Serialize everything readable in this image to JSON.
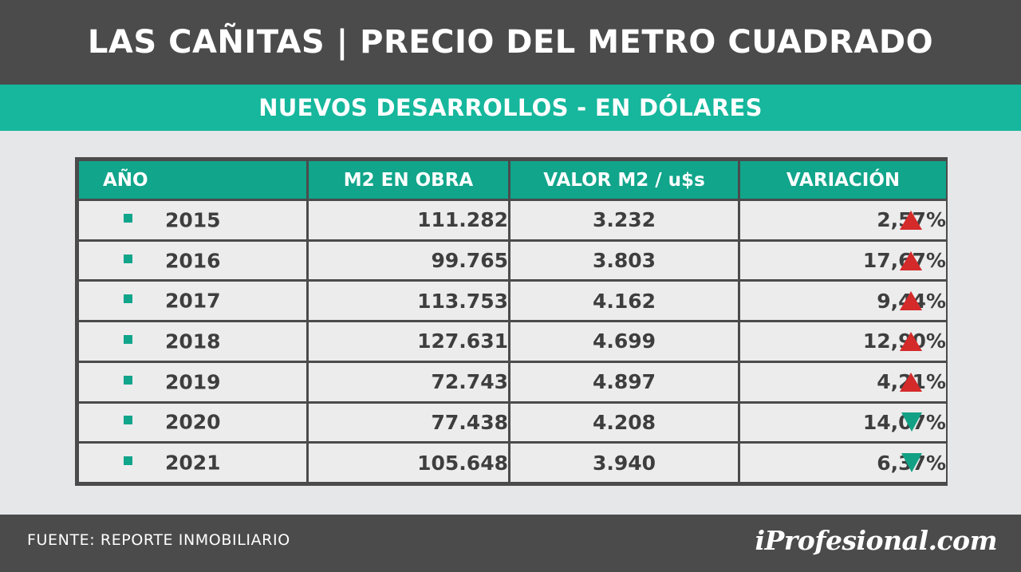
{
  "header": {
    "title": "LAS CAÑITAS | PRECIO DEL METRO CUADRADO",
    "subtitle": "NUEVOS DESARROLLOS - EN DÓLARES"
  },
  "colors": {
    "dark_gray": "#4b4b4c",
    "teal": "#16b79c",
    "teal_header": "#11a58b",
    "up_arrow": "#d42a2a",
    "down_arrow": "#12a184",
    "background": "#e6e7e8"
  },
  "chart_data": {
    "type": "table",
    "title": "LAS CAÑITAS | PRECIO DEL METRO CUADRADO",
    "subtitle": "NUEVOS DESARROLLOS - EN DÓLARES",
    "columns": [
      "AÑO",
      "M2 EN OBRA",
      "VALOR M2 / u$s",
      "VARIACIÓN"
    ],
    "rows": [
      {
        "year": "2015",
        "m2": "111.282",
        "valor": "3.232",
        "variacion": "2,57%",
        "trend": "up"
      },
      {
        "year": "2016",
        "m2": "99.765",
        "valor": "3.803",
        "variacion": "17,67%",
        "trend": "up"
      },
      {
        "year": "2017",
        "m2": "113.753",
        "valor": "4.162",
        "variacion": "9,44%",
        "trend": "up"
      },
      {
        "year": "2018",
        "m2": "127.631",
        "valor": "4.699",
        "variacion": "12,90%",
        "trend": "up"
      },
      {
        "year": "2019",
        "m2": "72.743",
        "valor": "4.897",
        "variacion": "4,21%",
        "trend": "up"
      },
      {
        "year": "2020",
        "m2": "77.438",
        "valor": "4.208",
        "variacion": "14,07%",
        "trend": "down"
      },
      {
        "year": "2021",
        "m2": "105.648",
        "valor": "3.940",
        "variacion": "6,37%",
        "trend": "down"
      }
    ],
    "trend_icons": {
      "up": "triangle-up-icon",
      "down": "triangle-down-icon"
    }
  },
  "footer": {
    "source": "FUENTE: REPORTE INMOBILIARIO",
    "logo": "iProfesional.com"
  }
}
